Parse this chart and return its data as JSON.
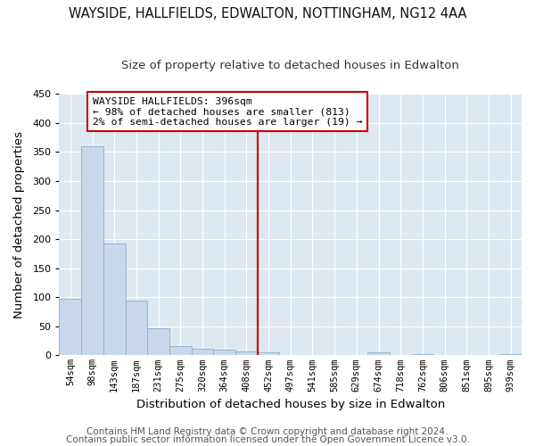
{
  "title1": "WAYSIDE, HALLFIELDS, EDWALTON, NOTTINGHAM, NG12 4AA",
  "title2": "Size of property relative to detached houses in Edwalton",
  "xlabel": "Distribution of detached houses by size in Edwalton",
  "ylabel": "Number of detached properties",
  "bar_labels": [
    "54sqm",
    "98sqm",
    "143sqm",
    "187sqm",
    "231sqm",
    "275sqm",
    "320sqm",
    "364sqm",
    "408sqm",
    "452sqm",
    "497sqm",
    "541sqm",
    "585sqm",
    "629sqm",
    "674sqm",
    "718sqm",
    "762sqm",
    "806sqm",
    "851sqm",
    "895sqm",
    "939sqm"
  ],
  "bar_values": [
    97,
    360,
    193,
    95,
    46,
    16,
    12,
    10,
    7,
    5,
    0,
    0,
    0,
    0,
    5,
    0,
    2,
    0,
    0,
    0,
    2
  ],
  "bar_color": "#c8d8ec",
  "bar_edge_color": "#8ab0d0",
  "vline_color": "#cc0000",
  "annotation_title": "WAYSIDE HALLFIELDS: 396sqm",
  "annotation_line1": "← 98% of detached houses are smaller (813)",
  "annotation_line2": "2% of semi-detached houses are larger (19) →",
  "annotation_box_color": "#ffffff",
  "annotation_box_edge": "#cc0000",
  "ylim": [
    0,
    450
  ],
  "yticks": [
    0,
    50,
    100,
    150,
    200,
    250,
    300,
    350,
    400,
    450
  ],
  "footer1": "Contains HM Land Registry data © Crown copyright and database right 2024.",
  "footer2": "Contains public sector information licensed under the Open Government Licence v3.0.",
  "fig_bg_color": "#ffffff",
  "plot_bg_color": "#dde8f0",
  "grid_color": "#ffffff",
  "title1_fontsize": 10.5,
  "title2_fontsize": 9.5,
  "footer_fontsize": 7.5,
  "vline_x_index": 8.5
}
